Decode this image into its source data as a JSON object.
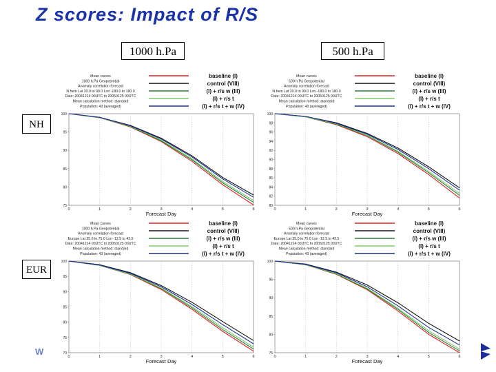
{
  "slide": {
    "title": "Z scores: Impact of R/S",
    "columns": [
      "1000 h.Pa",
      "500 h.Pa"
    ],
    "rows": [
      "NH",
      "EUR"
    ],
    "footer_logo": "W"
  },
  "colors": {
    "baseline": "#e02020",
    "control": "#111111",
    "rs_w": "#2a7a3a",
    "rs_t": "#7fcc66",
    "rs_t_w": "#1c2f9c",
    "title": "#1a33a8"
  },
  "chart_data": [
    {
      "type": "line",
      "region": "NH",
      "level": "1000 h.Pa",
      "info_lines": [
        "Mean curves",
        "1000 h.Pa Geopotential",
        "Anomaly correlation forecast",
        "N.hem Lat 20.0 to 90.0 Lon -180.0 to 180.0",
        "Date: 20041214 00UTC to 20050125 00UTC",
        "Mean calculation method: standard",
        "Population: 43 (averaged)"
      ],
      "xlabel": "Forecast Day",
      "x": [
        0,
        1,
        2,
        3,
        4,
        5,
        6
      ],
      "xlim": [
        0,
        6
      ],
      "ylim": [
        75,
        100
      ],
      "yticks": [
        75,
        80,
        85,
        90,
        95,
        100
      ],
      "series": [
        {
          "name": "baseline (I)",
          "color_key": "baseline",
          "values": [
            100,
            98.9,
            96.4,
            92.4,
            87.0,
            80.6,
            75.1
          ]
        },
        {
          "name": "control (VIII)",
          "color_key": "control",
          "values": [
            100,
            99.0,
            96.8,
            93.3,
            88.5,
            82.6,
            77.8
          ]
        },
        {
          "name": "(I) + r/s w (III)",
          "color_key": "rs_w",
          "values": [
            100,
            98.9,
            96.5,
            92.6,
            87.4,
            81.1,
            75.8
          ]
        },
        {
          "name": "(I) + r/s t",
          "color_key": "rs_t",
          "values": [
            100,
            98.9,
            96.6,
            92.8,
            87.7,
            81.5,
            76.3
          ]
        },
        {
          "name": "(I) + r/s t + w (IV)",
          "color_key": "rs_t_w",
          "values": [
            100,
            99.0,
            96.7,
            93.1,
            88.2,
            82.2,
            77.2
          ]
        }
      ]
    },
    {
      "type": "line",
      "region": "NH",
      "level": "500 h.Pa",
      "info_lines": [
        "Mean curves",
        "500 h.Pa Geopotential",
        "Anomaly correlation forecast",
        "N.hem Lat 20.0 to 90.0 Lon -180.0 to 180.0",
        "Date: 20041214 00UTC to 20050125 00UTC",
        "Mean calculation method: standard",
        "Population: 43 (averaged)"
      ],
      "xlabel": "Forecast Day",
      "x": [
        0,
        1,
        2,
        3,
        4,
        5,
        6
      ],
      "xlim": [
        0,
        6
      ],
      "ylim": [
        80,
        100
      ],
      "yticks": [
        80,
        82,
        84,
        86,
        88,
        90,
        92,
        94,
        96,
        98,
        100
      ],
      "series": [
        {
          "name": "baseline (I)",
          "color_key": "baseline",
          "values": [
            100,
            99.3,
            97.6,
            95.0,
            91.3,
            86.7,
            81.6
          ]
        },
        {
          "name": "control (VIII)",
          "color_key": "control",
          "values": [
            100,
            99.4,
            98.0,
            95.7,
            92.5,
            88.4,
            83.8
          ]
        },
        {
          "name": "(I) + r/s w (III)",
          "color_key": "rs_w",
          "values": [
            100,
            99.3,
            97.7,
            95.2,
            91.6,
            87.1,
            82.2
          ]
        },
        {
          "name": "(I) + r/s t",
          "color_key": "rs_t",
          "values": [
            100,
            99.3,
            97.8,
            95.3,
            91.8,
            87.4,
            82.6
          ]
        },
        {
          "name": "(I) + r/s t + w (IV)",
          "color_key": "rs_t_w",
          "values": [
            100,
            99.4,
            97.9,
            95.5,
            92.2,
            88.0,
            83.3
          ]
        }
      ]
    },
    {
      "type": "line",
      "region": "EUR",
      "level": "1000 h.Pa",
      "info_lines": [
        "Mean curves",
        "1000 h.Pa Geopotential",
        "Anomaly correlation forecast",
        "Europe Lat 35.0 to 75.0 Lon -12.5 to 42.5",
        "Date: 20041214 00UTC to 20050125 00UTC",
        "Mean calculation method: standard",
        "Population: 43 (averaged)"
      ],
      "xlabel": "Forecast Day",
      "x": [
        0,
        1,
        2,
        3,
        4,
        5,
        6
      ],
      "xlim": [
        0,
        6
      ],
      "ylim": [
        70,
        100
      ],
      "yticks": [
        70,
        75,
        80,
        85,
        90,
        95,
        100
      ],
      "series": [
        {
          "name": "baseline (I)",
          "color_key": "baseline",
          "values": [
            100,
            98.6,
            95.6,
            90.7,
            84.2,
            77.0,
            70.5
          ]
        },
        {
          "name": "control (VIII)",
          "color_key": "control",
          "values": [
            100,
            98.8,
            96.2,
            92.0,
            86.5,
            80.2,
            74.0
          ]
        },
        {
          "name": "(I) + r/s w (III)",
          "color_key": "rs_w",
          "values": [
            100,
            98.6,
            95.7,
            91.0,
            84.7,
            77.6,
            71.2
          ]
        },
        {
          "name": "(I) + r/s t",
          "color_key": "rs_t",
          "values": [
            100,
            98.6,
            95.8,
            91.2,
            85.1,
            78.2,
            71.8
          ]
        },
        {
          "name": "(I) + r/s t + w (IV)",
          "color_key": "rs_t_w",
          "values": [
            100,
            98.7,
            96.0,
            91.6,
            85.8,
            79.2,
            72.9
          ]
        }
      ]
    },
    {
      "type": "line",
      "region": "EUR",
      "level": "500 h.Pa",
      "info_lines": [
        "Mean curves",
        "500 h.Pa Geopotential",
        "Anomaly correlation forecast",
        "Europe Lat 35.0 to 75.0 Lon -12.5 to 42.5",
        "Date: 20041214 00UTC to 20050125 00UTC",
        "Mean calculation method: standard",
        "Population: 43 (averaged)"
      ],
      "xlabel": "Forecast Day",
      "x": [
        0,
        1,
        2,
        3,
        4,
        5,
        6
      ],
      "xlim": [
        0,
        6
      ],
      "ylim": [
        75,
        100
      ],
      "yticks": [
        75,
        80,
        85,
        90,
        95,
        100
      ],
      "series": [
        {
          "name": "baseline (I)",
          "color_key": "baseline",
          "values": [
            100,
            99.0,
            96.4,
            92.2,
            86.4,
            80.0,
            75.0
          ]
        },
        {
          "name": "control (VIII)",
          "color_key": "control",
          "values": [
            100,
            99.2,
            97.0,
            93.5,
            88.6,
            83.0,
            78.2
          ]
        },
        {
          "name": "(I) + r/s w (III)",
          "color_key": "rs_w",
          "values": [
            100,
            99.0,
            96.5,
            92.4,
            86.8,
            80.5,
            75.5
          ]
        },
        {
          "name": "(I) + r/s t",
          "color_key": "rs_t",
          "values": [
            100,
            99.0,
            96.6,
            92.6,
            87.1,
            81.0,
            76.0
          ]
        },
        {
          "name": "(I) + r/s t + w (IV)",
          "color_key": "rs_t_w",
          "values": [
            100,
            99.1,
            96.8,
            93.0,
            87.8,
            81.9,
            77.1
          ]
        }
      ]
    }
  ]
}
